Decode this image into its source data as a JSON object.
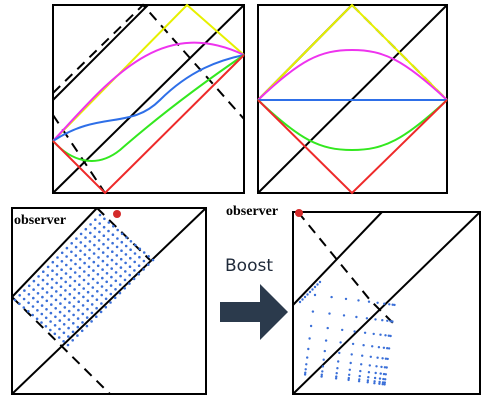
{
  "labels": {
    "observer_left": "observer",
    "observer_right": "observer",
    "boost": "Boost"
  },
  "colors": {
    "frame": "#000000",
    "yellow": "#e6f000",
    "magenta": "#ee33ee",
    "blue": "#2e6fe8",
    "green": "#33e81f",
    "red": "#ee2a2a",
    "dots": "#3a6fd8",
    "arrow": "#2b3a4c",
    "observer_dot": "#d42a2a"
  }
}
